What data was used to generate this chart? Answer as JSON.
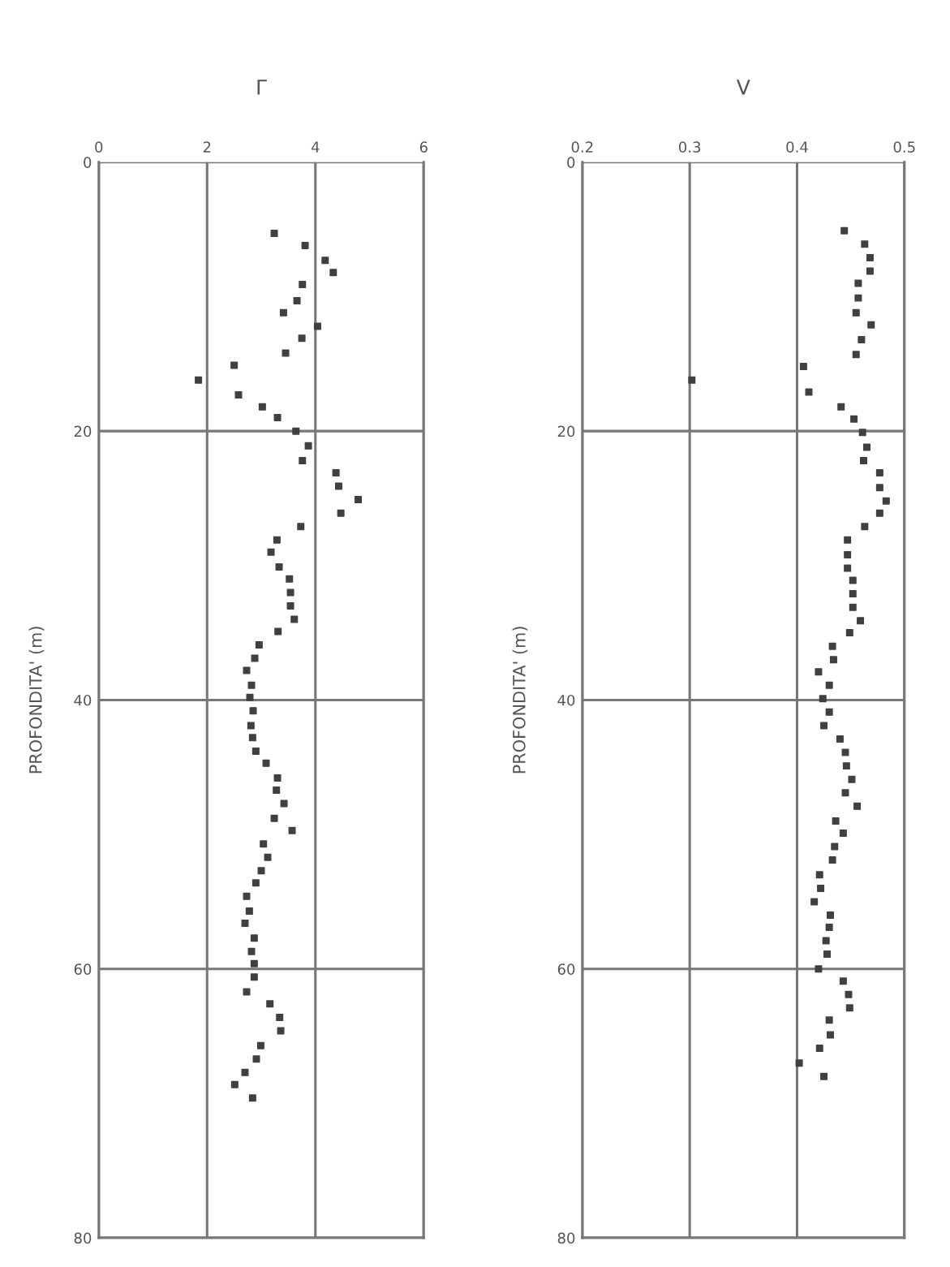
{
  "chart_data": [
    {
      "type": "scatter",
      "title": "Γ",
      "ylabel": "PROFONDITA' (m)",
      "xlim": [
        0,
        6
      ],
      "xticks": [
        0,
        2,
        4,
        6
      ],
      "ylim": [
        80,
        0
      ],
      "yticks": [
        0,
        20,
        40,
        60,
        80
      ],
      "grid": true,
      "marker": "square",
      "series": [
        {
          "color": "#404040",
          "x": [
            3.24,
            3.81,
            4.18,
            4.33,
            3.76,
            3.66,
            3.41,
            4.04,
            3.75,
            3.45,
            2.5,
            1.84,
            2.58,
            3.02,
            3.3,
            3.64,
            3.87,
            3.76,
            4.38,
            4.43,
            4.79,
            4.47,
            3.73,
            3.29,
            3.18,
            3.33,
            3.52,
            3.54,
            3.54,
            3.61,
            3.31,
            2.96,
            2.88,
            2.73,
            2.82,
            2.79,
            2.85,
            2.81,
            2.84,
            2.9,
            3.09,
            3.3,
            3.28,
            3.42,
            3.24,
            3.57,
            3.04,
            3.12,
            3.0,
            2.9,
            2.73,
            2.78,
            2.7,
            2.87,
            2.82,
            2.87,
            2.87,
            2.73,
            3.16,
            3.34,
            3.36,
            2.99,
            2.91,
            2.7,
            2.51,
            2.84
          ],
          "values": [
            5.3,
            6.2,
            7.3,
            8.2,
            9.1,
            10.3,
            11.2,
            12.2,
            13.1,
            14.2,
            15.1,
            16.2,
            17.3,
            18.2,
            19.0,
            20.0,
            21.1,
            22.2,
            23.1,
            24.1,
            25.1,
            26.1,
            27.1,
            28.1,
            29.0,
            30.1,
            31.0,
            32.0,
            33.0,
            34.0,
            34.9,
            35.9,
            36.9,
            37.8,
            38.9,
            39.8,
            40.8,
            41.9,
            42.8,
            43.8,
            44.7,
            45.8,
            46.7,
            47.7,
            48.8,
            49.7,
            50.7,
            51.7,
            52.7,
            53.6,
            54.6,
            55.7,
            56.6,
            57.7,
            58.7,
            59.6,
            60.6,
            61.7,
            62.6,
            63.6,
            64.6,
            65.7,
            66.7,
            67.7,
            68.6,
            69.6
          ]
        }
      ]
    },
    {
      "type": "scatter",
      "title": "V",
      "ylabel": "PROFONDITA' (m)",
      "xlim": [
        0.2,
        0.5
      ],
      "xticks": [
        0.2,
        0.3,
        0.4,
        0.5
      ],
      "ylim": [
        80,
        0
      ],
      "yticks": [
        0,
        20,
        40,
        60,
        80
      ],
      "grid": true,
      "marker": "square",
      "series": [
        {
          "color": "#404040",
          "x": [
            0.444,
            0.463,
            0.468,
            0.468,
            0.457,
            0.457,
            0.455,
            0.469,
            0.46,
            0.455,
            0.406,
            0.302,
            0.411,
            0.441,
            0.453,
            0.461,
            0.465,
            0.462,
            0.477,
            0.477,
            0.483,
            0.477,
            0.463,
            0.447,
            0.447,
            0.447,
            0.452,
            0.452,
            0.452,
            0.459,
            0.449,
            0.433,
            0.434,
            0.42,
            0.43,
            0.424,
            0.43,
            0.425,
            0.44,
            0.445,
            0.446,
            0.451,
            0.445,
            0.456,
            0.436,
            0.443,
            0.435,
            0.433,
            0.421,
            0.422,
            0.416,
            0.431,
            0.43,
            0.427,
            0.428,
            0.42,
            0.443,
            0.448,
            0.449,
            0.43,
            0.431,
            0.421,
            0.402,
            0.425
          ],
          "values": [
            5.1,
            6.1,
            7.1,
            8.1,
            9.0,
            10.1,
            11.2,
            12.1,
            13.2,
            14.3,
            15.2,
            16.2,
            17.1,
            18.2,
            19.1,
            20.1,
            21.2,
            22.2,
            23.1,
            24.2,
            25.2,
            26.1,
            27.1,
            28.1,
            29.2,
            30.2,
            31.1,
            32.1,
            33.1,
            34.1,
            35.0,
            36.0,
            37.0,
            37.9,
            38.9,
            39.9,
            40.9,
            41.9,
            42.9,
            43.9,
            44.9,
            45.9,
            46.9,
            47.9,
            49.0,
            49.9,
            50.9,
            51.9,
            53.0,
            54.0,
            55.0,
            56.0,
            56.9,
            57.9,
            58.9,
            60.0,
            60.9,
            61.9,
            62.9,
            63.8,
            64.9,
            65.9,
            67.0,
            68.0
          ]
        }
      ]
    }
  ]
}
